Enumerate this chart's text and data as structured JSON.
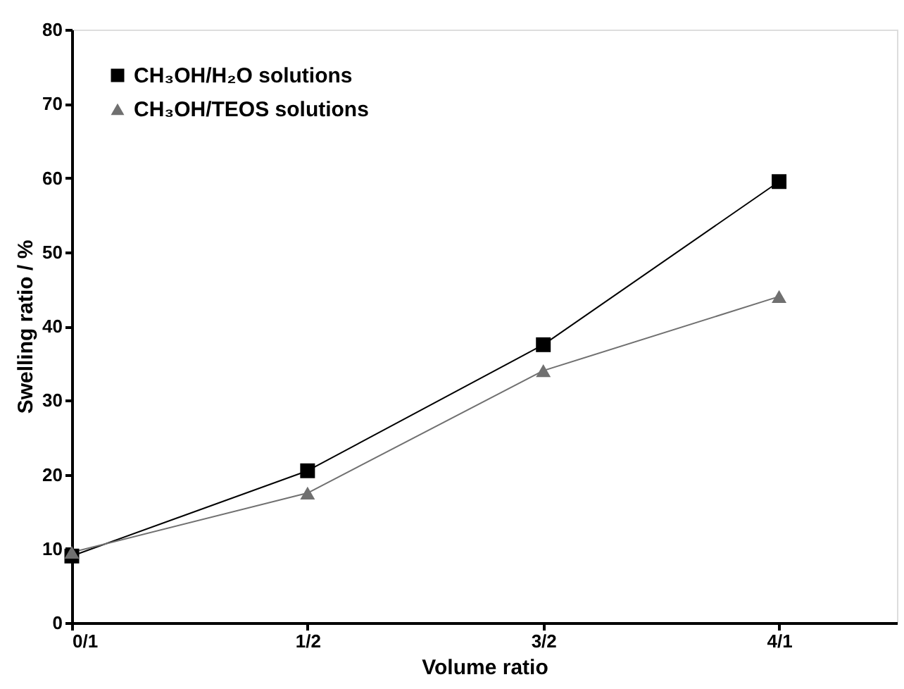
{
  "chart_data": {
    "type": "line",
    "xlabel": "Volume ratio",
    "ylabel": "Swelling ratio / %",
    "categories": [
      "0/1",
      "1/2",
      "3/2",
      "4/1"
    ],
    "series": [
      {
        "name": "CH₃OH/H₂O solutions",
        "color": "#000000",
        "marker": "square",
        "values": [
          9,
          20.5,
          37.5,
          59.5
        ]
      },
      {
        "name": "CH₃OH/TEOS solutions",
        "color": "#707070",
        "marker": "triangle",
        "values": [
          9.5,
          17.5,
          34,
          44
        ]
      }
    ],
    "ylim": [
      0,
      80
    ],
    "yticks": [
      0,
      10,
      20,
      30,
      40,
      50,
      60,
      70,
      80
    ],
    "grid": false,
    "legend": "top left",
    "line_style": "solid"
  }
}
